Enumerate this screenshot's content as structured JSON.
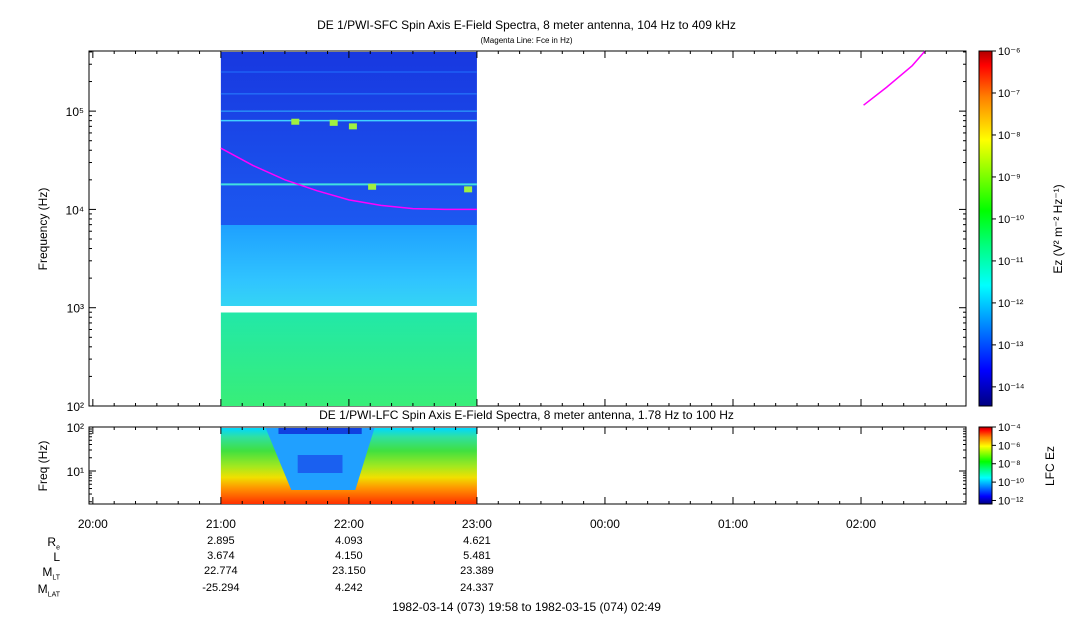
{
  "panels": {
    "sfc": {
      "title": "DE 1/PWI-SFC  Spin Axis E-Field Spectra, 8 meter antenna, 104 Hz to 409 kHz",
      "subtitle": "(Magenta Line: Fce in Hz)",
      "ylabel": "Frequency (Hz)",
      "colorbar_label": "Ez (V² m⁻² Hz⁻¹)"
    },
    "lfc": {
      "title": "DE 1/PWI-LFC  Spin Axis E-Field Spectra, 8 meter antenna, 1.78 Hz to 100 Hz",
      "ylabel": "Freq (Hz)",
      "colorbar_label": "LFC Ez"
    }
  },
  "chart_data": [
    {
      "type": "heatmap",
      "title": "DE 1/PWI-SFC  Spin Axis E-Field Spectra, 8 meter antenna, 104 Hz to 409 kHz",
      "subtitle": "(Magenta Line: Fce in Hz)",
      "xlabel": "",
      "ylabel": "Frequency (Hz)",
      "x_ticks": [
        "20:00",
        "21:00",
        "22:00",
        "23:00",
        "00:00",
        "01:00",
        "02:00"
      ],
      "xlim_hours": [
        19.97,
        26.82
      ],
      "yscale": "log",
      "ylim": [
        100,
        409000
      ],
      "y_ticks": [
        "10²",
        "10³",
        "10⁴",
        "10⁵"
      ],
      "data_coverage_hours": [
        21.0,
        23.0
      ],
      "gap_band_hz": [
        900,
        1050
      ],
      "colorbar": {
        "label": "Ez (V² m⁻² Hz⁻¹)",
        "scale": "log",
        "range": [
          3.5e-15,
          1e-06
        ],
        "ticks": [
          "10⁻¹⁴",
          "10⁻¹³",
          "10⁻¹²",
          "10⁻¹¹",
          "10⁻¹⁰",
          "10⁻⁹",
          "10⁻⁸",
          "10⁻⁷",
          "10⁻⁶"
        ]
      },
      "series": [
        {
          "name": "Fce",
          "color": "#ff00ff",
          "x_hours": [
            21.0,
            21.25,
            21.5,
            21.75,
            22.0,
            22.25,
            22.5,
            22.75,
            23.0
          ],
          "y_hz": [
            42000,
            28000,
            20000,
            15500,
            12500,
            11000,
            10200,
            10000,
            10000
          ]
        },
        {
          "name": "Fce",
          "color": "#ff00ff",
          "x_hours": [
            26.02,
            26.2,
            26.4,
            26.5
          ],
          "y_hz": [
            115000,
            175000,
            290000,
            409000
          ]
        }
      ]
    },
    {
      "type": "heatmap",
      "title": "DE 1/PWI-LFC  Spin Axis E-Field Spectra, 8 meter antenna, 1.78 Hz to 100 Hz",
      "ylabel": "Freq (Hz)",
      "yscale": "log",
      "ylim": [
        1.78,
        100
      ],
      "y_ticks": [
        "10¹",
        "10²"
      ],
      "data_coverage_hours": [
        21.0,
        23.0
      ],
      "colorbar": {
        "label": "LFC Ez",
        "scale": "log",
        "range": [
          4e-13,
          0.0002
        ],
        "ticks": [
          "10⁻¹²",
          "10⁻¹⁰",
          "10⁻⁸",
          "10⁻⁶",
          "10⁻⁴"
        ]
      }
    }
  ],
  "ephemeris": {
    "labels": [
      {
        "main": "R",
        "sub": "e"
      },
      {
        "main": "L",
        "sub": ""
      },
      {
        "main": "M",
        "sub": "LT"
      },
      {
        "main": "M",
        "sub": "LAT"
      }
    ],
    "columns": [
      {
        "time": "21:00",
        "values": [
          "2.895",
          "3.674",
          "22.774",
          "-25.294"
        ]
      },
      {
        "time": "22:00",
        "values": [
          "4.093",
          "4.150",
          "23.150",
          "4.242"
        ]
      },
      {
        "time": "23:00",
        "values": [
          "4.621",
          "5.481",
          "23.389",
          "24.337"
        ]
      }
    ]
  },
  "time_range": "1982-03-14 (073) 19:58 to 1982-03-15 (074) 02:49",
  "colors": {
    "fce_line": "#ff00ff",
    "colormap": [
      "#000080",
      "#0000ff",
      "#0080ff",
      "#00ffff",
      "#00ff80",
      "#00ff00",
      "#80ff00",
      "#ffff00",
      "#ff8000",
      "#ff0000",
      "#800000"
    ]
  }
}
